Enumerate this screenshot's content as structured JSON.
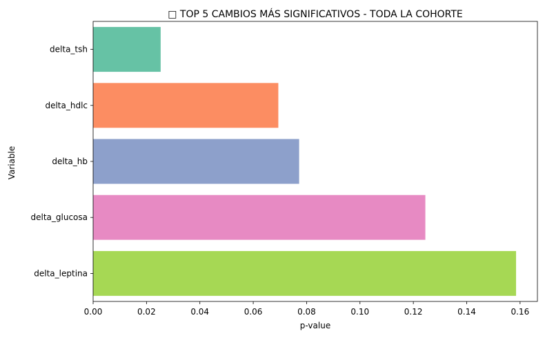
{
  "chart_data": {
    "type": "bar",
    "orientation": "horizontal",
    "title": "□ TOP 5 CAMBIOS MÁS SIGNIFICATIVOS - TODA LA COHORTE",
    "xlabel": "p-value",
    "ylabel": "Variable",
    "categories": [
      "delta_tsh",
      "delta_hdlc",
      "delta_hb",
      "delta_glucosa",
      "delta_leptina"
    ],
    "values": [
      0.0253,
      0.0694,
      0.0772,
      0.1245,
      0.1585
    ],
    "colors": [
      "#66c2a5",
      "#fc8d62",
      "#8da0cb",
      "#e78ac3",
      "#a6d854"
    ],
    "xlim": [
      0,
      0.1665
    ],
    "xticks": [
      "0.00",
      "0.02",
      "0.04",
      "0.06",
      "0.08",
      "0.10",
      "0.12",
      "0.14",
      "0.16"
    ],
    "grid": false,
    "legend": "none"
  }
}
